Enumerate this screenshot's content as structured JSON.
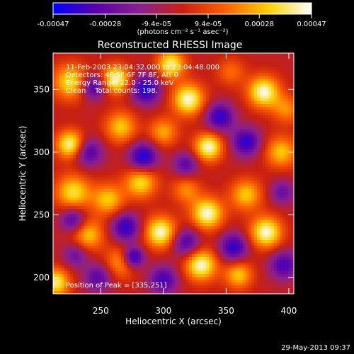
{
  "colorbar": {
    "tick_labels": [
      "-0.00047",
      "-0.00028",
      "-9.4e-05",
      "9.4e-05",
      "0.00028",
      "0.00047"
    ],
    "tick_values": [
      -0.00047,
      -0.00028,
      -9.4e-05,
      9.4e-05,
      0.00028,
      0.00047
    ],
    "range": [
      -0.00047,
      0.00047
    ],
    "units_label": "(photons cm⁻² s⁻¹ asec⁻²)",
    "colors": [
      "#0000ff",
      "#5a00a8",
      "#8a2090",
      "#c82010",
      "#ff6000",
      "#ffd000",
      "#ffffff"
    ]
  },
  "chart_data": {
    "type": "heatmap",
    "title": "Reconstructed RHESSI Image",
    "xlabel": "Heliocentric X (arcsec)",
    "ylabel": "Heliocentric Y (arcsec)",
    "xlim": [
      212,
      404
    ],
    "ylim": [
      187,
      379
    ],
    "x_ticks": [
      250,
      300,
      350,
      400
    ],
    "y_ticks": [
      200,
      250,
      300,
      350
    ],
    "x_tick_labels": [
      "250",
      "300",
      "350",
      "400"
    ],
    "y_tick_labels": [
      "200",
      "250",
      "300",
      "350"
    ],
    "grid": false,
    "value_range": [
      -0.00047,
      0.00047
    ],
    "annotations": [
      "11-Feb-2003 23:04:32.000 to 23:04:48.000",
      "Detectors: 4F 5F 6F 7F 8F, Att 0",
      "Energy Range: 12.0 - 25.0 keV",
      "Clean    Total counts: 198."
    ],
    "peak_label": "Position of Peak = [335,251]",
    "peak_position": [
      335,
      251
    ],
    "blobs": [
      {
        "x": 226,
        "y": 356,
        "a": 0.8,
        "s": 10
      },
      {
        "x": 262,
        "y": 358,
        "a": 1.0,
        "s": 8
      },
      {
        "x": 306,
        "y": 370,
        "a": 0.9,
        "s": 8
      },
      {
        "x": 320,
        "y": 342,
        "a": 1.0,
        "s": 9
      },
      {
        "x": 354,
        "y": 364,
        "a": 0.4,
        "s": 8
      },
      {
        "x": 380,
        "y": 348,
        "a": 1.0,
        "s": 9
      },
      {
        "x": 398,
        "y": 334,
        "a": 0.5,
        "s": 8
      },
      {
        "x": 226,
        "y": 306,
        "a": 1.0,
        "s": 8
      },
      {
        "x": 266,
        "y": 320,
        "a": 0.7,
        "s": 9
      },
      {
        "x": 300,
        "y": 316,
        "a": 0.6,
        "s": 8
      },
      {
        "x": 336,
        "y": 304,
        "a": 1.0,
        "s": 8
      },
      {
        "x": 394,
        "y": 300,
        "a": 0.7,
        "s": 9
      },
      {
        "x": 228,
        "y": 268,
        "a": 0.8,
        "s": 10
      },
      {
        "x": 256,
        "y": 262,
        "a": 0.7,
        "s": 9
      },
      {
        "x": 282,
        "y": 276,
        "a": 0.8,
        "s": 9
      },
      {
        "x": 318,
        "y": 270,
        "a": 0.5,
        "s": 8
      },
      {
        "x": 335,
        "y": 251,
        "a": 1.0,
        "s": 9
      },
      {
        "x": 366,
        "y": 266,
        "a": 0.7,
        "s": 9
      },
      {
        "x": 382,
        "y": 236,
        "a": 1.0,
        "s": 9
      },
      {
        "x": 240,
        "y": 234,
        "a": 0.7,
        "s": 9
      },
      {
        "x": 298,
        "y": 236,
        "a": 1.0,
        "s": 9
      },
      {
        "x": 266,
        "y": 212,
        "a": 0.6,
        "s": 9
      },
      {
        "x": 330,
        "y": 210,
        "a": 1.0,
        "s": 9
      },
      {
        "x": 360,
        "y": 202,
        "a": 0.7,
        "s": 8
      },
      {
        "x": 214,
        "y": 196,
        "a": 0.9,
        "s": 8
      },
      {
        "x": 244,
        "y": 352,
        "a": -0.8,
        "s": 7
      },
      {
        "x": 286,
        "y": 350,
        "a": -0.9,
        "s": 8
      },
      {
        "x": 345,
        "y": 328,
        "a": -0.8,
        "s": 8
      },
      {
        "x": 240,
        "y": 300,
        "a": -0.7,
        "s": 8
      },
      {
        "x": 284,
        "y": 296,
        "a": -0.9,
        "s": 8
      },
      {
        "x": 318,
        "y": 290,
        "a": -0.6,
        "s": 7
      },
      {
        "x": 366,
        "y": 308,
        "a": -0.8,
        "s": 8
      },
      {
        "x": 228,
        "y": 246,
        "a": -0.7,
        "s": 7
      },
      {
        "x": 270,
        "y": 240,
        "a": -0.8,
        "s": 8
      },
      {
        "x": 318,
        "y": 228,
        "a": -0.7,
        "s": 8
      },
      {
        "x": 356,
        "y": 224,
        "a": -0.8,
        "s": 8
      },
      {
        "x": 276,
        "y": 216,
        "a": -1.0,
        "s": 6
      },
      {
        "x": 248,
        "y": 200,
        "a": -0.6,
        "s": 8
      },
      {
        "x": 300,
        "y": 198,
        "a": -0.7,
        "s": 8
      },
      {
        "x": 396,
        "y": 210,
        "a": -0.7,
        "s": 8
      },
      {
        "x": 395,
        "y": 268,
        "a": -0.5,
        "s": 7
      },
      {
        "x": 230,
        "y": 218,
        "a": -0.5,
        "s": 7
      }
    ]
  },
  "footer": {
    "date": "29-May-2013 09:37"
  }
}
